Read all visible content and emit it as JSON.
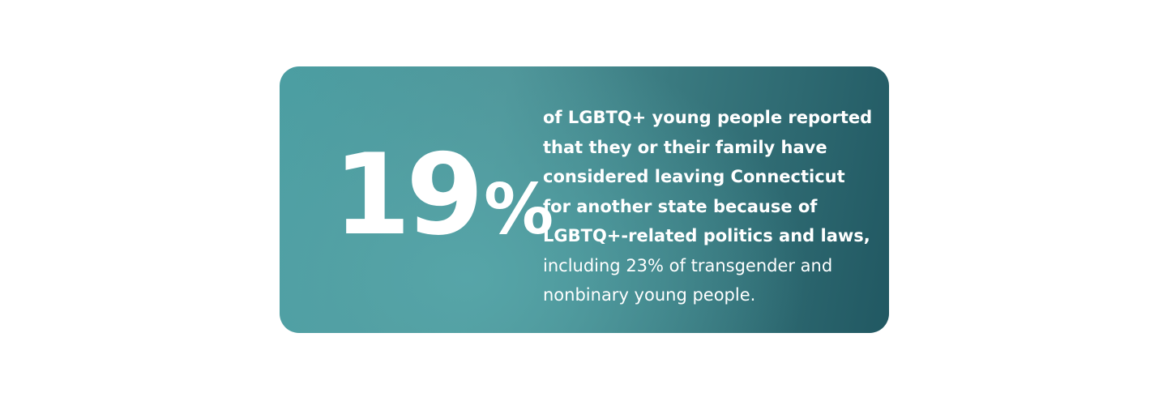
{
  "stat": {
    "number": "19",
    "unit": "%"
  },
  "description": {
    "bold_lines": [
      "of LGBTQ+ young people reported",
      "that they or their family have",
      "considered leaving Connecticut",
      "for another state because of",
      "LGBTQ+-related politics and laws,"
    ],
    "regular_lines": [
      "including 23% of transgender and",
      "nonbinary young people."
    ]
  }
}
